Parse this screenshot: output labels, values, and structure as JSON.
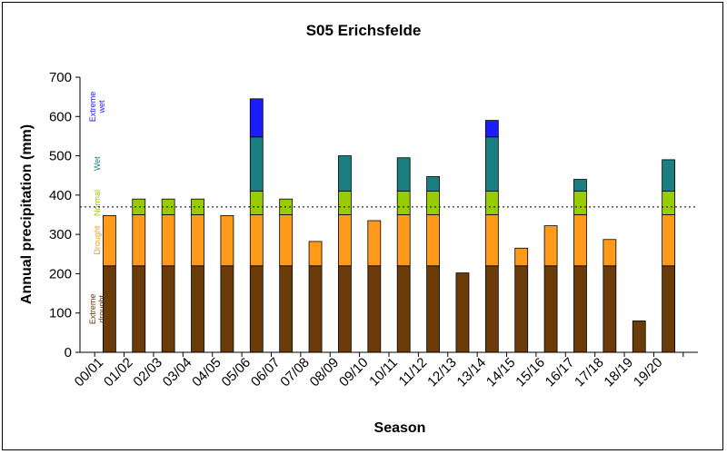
{
  "chart_data": {
    "type": "bar",
    "stacked": true,
    "title": "S05 Erichsfelde",
    "xlabel": "Season",
    "ylabel": "Annual precipitation (mm)",
    "ylim": [
      0,
      700
    ],
    "yticks": [
      0,
      100,
      200,
      300,
      400,
      500,
      600,
      700
    ],
    "grid": false,
    "categories": [
      "00/01",
      "01/02",
      "02/03",
      "03/04",
      "04/05",
      "05/06",
      "06/07",
      "07/08",
      "08/09",
      "09/10",
      "10/11",
      "11/12",
      "12/13",
      "13/14",
      "14/15",
      "15/16",
      "16/17",
      "17/18",
      "18/19",
      "19/20"
    ],
    "totals": [
      348,
      390,
      390,
      390,
      348,
      645,
      390,
      282,
      500,
      335,
      495,
      447,
      202,
      590,
      265,
      322,
      440,
      287,
      80,
      490
    ],
    "class_bounds": [
      0,
      220,
      350,
      410,
      548,
      10000
    ],
    "reference_line": {
      "value": 370,
      "style": "dotted"
    },
    "series": [
      {
        "name": "Extreme drought",
        "color": "#6b3b0a"
      },
      {
        "name": "Drought",
        "color": "#ff9a1a"
      },
      {
        "name": "Normal",
        "color": "#99cc00"
      },
      {
        "name": "Wet",
        "color": "#1b7e80"
      },
      {
        "name": "Extreme wet",
        "color": "#1c1cff"
      }
    ],
    "class_labels": [
      {
        "lines": [
          "Extreme",
          "drought"
        ],
        "color": "#6b3b0a",
        "center_value": 110
      },
      {
        "lines": [
          "Drought"
        ],
        "color": "#ff9a1a",
        "center_value": 285
      },
      {
        "lines": [
          "Normal"
        ],
        "color": "#99cc00",
        "center_value": 380
      },
      {
        "lines": [
          "Wet"
        ],
        "color": "#1b7e80",
        "center_value": 480
      },
      {
        "lines": [
          "Extreme",
          "wet"
        ],
        "color": "#1c1cff",
        "center_value": 625
      }
    ]
  }
}
